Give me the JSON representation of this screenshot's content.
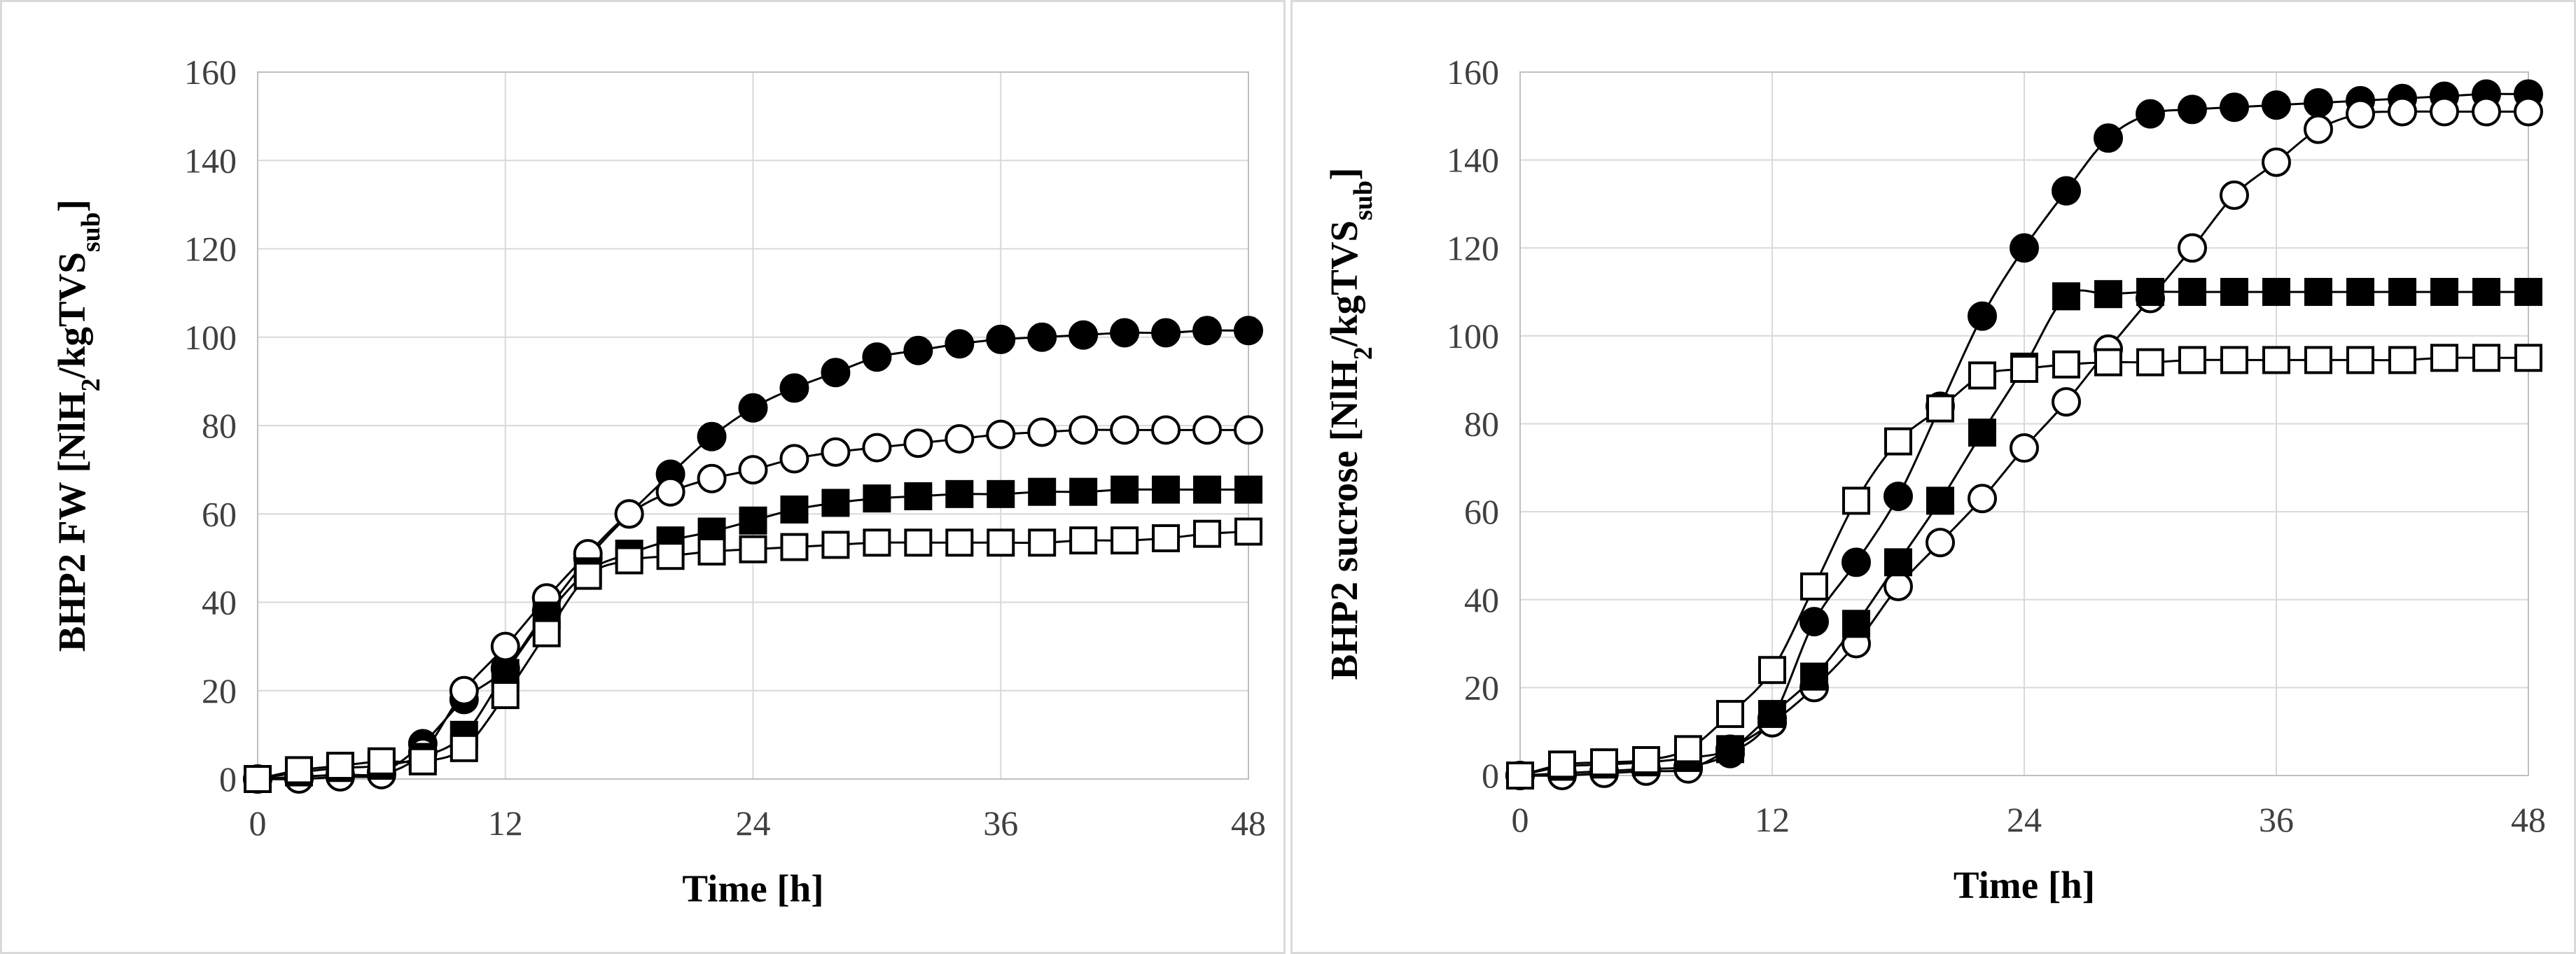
{
  "chart_data": [
    {
      "type": "scatter",
      "title": "",
      "xlabel": "Time [h]",
      "ylabel": {
        "prefix": "BHP2 FW [NlH",
        "sub1": "2",
        "mid": "/kgTVS",
        "sub2": "sub",
        "suffix": "]"
      },
      "xlim": [
        0,
        48
      ],
      "ylim": [
        0,
        160
      ],
      "xticks": [
        "0",
        "12",
        "24",
        "36",
        "48"
      ],
      "yticks": [
        "0",
        "20",
        "40",
        "60",
        "80",
        "100",
        "120",
        "140",
        "160"
      ],
      "grid": true,
      "legend": "none",
      "series": [
        {
          "marker": "filled-circle",
          "x": [
            0,
            2,
            4,
            6,
            8,
            10,
            12,
            14,
            16,
            18,
            20,
            22,
            24,
            26,
            28,
            30,
            32,
            34,
            36,
            38,
            40,
            42,
            44,
            46,
            48
          ],
          "y": [
            0,
            0.5,
            1,
            1.5,
            8,
            18,
            25,
            38,
            50,
            60,
            69,
            77.5,
            84,
            88.5,
            92,
            95.5,
            97,
            98.5,
            99.5,
            100,
            100.5,
            101,
            101,
            101.5,
            101.5
          ]
        },
        {
          "marker": "open-circle",
          "x": [
            0,
            2,
            4,
            6,
            8,
            10,
            12,
            14,
            16,
            18,
            20,
            22,
            24,
            26,
            28,
            30,
            32,
            34,
            36,
            38,
            40,
            42,
            44,
            46,
            48
          ],
          "y": [
            0,
            0,
            0.5,
            1,
            6,
            20,
            30,
            41,
            51,
            60,
            65,
            68,
            70,
            72.5,
            74,
            75,
            76,
            77,
            78,
            78.5,
            79,
            79,
            79,
            79,
            79
          ]
        },
        {
          "marker": "filled-square",
          "x": [
            0,
            2,
            4,
            6,
            8,
            10,
            12,
            14,
            16,
            18,
            20,
            22,
            24,
            26,
            28,
            30,
            32,
            34,
            36,
            38,
            40,
            42,
            44,
            46,
            48
          ],
          "y": [
            0,
            1.5,
            2.5,
            3,
            5,
            10,
            24,
            37,
            47,
            51,
            54,
            56,
            58.5,
            61,
            62.5,
            63.5,
            64,
            64.5,
            64.5,
            65,
            65,
            65.5,
            65.5,
            65.5,
            65.5
          ]
        },
        {
          "marker": "open-square",
          "x": [
            0,
            2,
            4,
            6,
            8,
            10,
            12,
            14,
            16,
            18,
            20,
            22,
            24,
            26,
            28,
            30,
            32,
            34,
            36,
            38,
            40,
            42,
            44,
            46,
            48
          ],
          "y": [
            0,
            2,
            3,
            4,
            4,
            7,
            19,
            33,
            46,
            49.5,
            50.5,
            51.5,
            52,
            52.5,
            53,
            53.5,
            53.5,
            53.5,
            53.5,
            53.5,
            54,
            54,
            54.5,
            55.5,
            56
          ]
        }
      ]
    },
    {
      "type": "scatter",
      "title": "",
      "xlabel": "Time [h]",
      "ylabel": {
        "prefix": "BHP2 sucrose [NlH",
        "sub1": "2",
        "mid": "/kgTVS",
        "sub2": "sub",
        "suffix": "]"
      },
      "xlim": [
        0,
        48
      ],
      "ylim": [
        0,
        160
      ],
      "xticks": [
        "0",
        "12",
        "24",
        "36",
        "48"
      ],
      "yticks": [
        "0",
        "20",
        "40",
        "60",
        "80",
        "100",
        "120",
        "140",
        "160"
      ],
      "grid": true,
      "legend": "none",
      "series": [
        {
          "marker": "filled-circle",
          "x": [
            0,
            2,
            4,
            6,
            8,
            10,
            12,
            14,
            16,
            18,
            20,
            22,
            24,
            26,
            28,
            30,
            32,
            34,
            36,
            38,
            40,
            42,
            44,
            46,
            48
          ],
          "y": [
            0,
            0.5,
            1,
            1.5,
            2,
            5,
            13,
            35,
            48.5,
            63.5,
            84,
            104.5,
            120,
            133,
            145,
            150.5,
            151.5,
            152,
            152.5,
            153,
            153.5,
            154,
            154.5,
            155,
            155
          ]
        },
        {
          "marker": "open-circle",
          "x": [
            0,
            2,
            4,
            6,
            8,
            10,
            12,
            14,
            16,
            18,
            20,
            22,
            24,
            26,
            28,
            30,
            32,
            34,
            36,
            38,
            40,
            42,
            44,
            46,
            48
          ],
          "y": [
            0,
            0,
            0.5,
            1,
            1.5,
            6,
            12,
            20,
            30,
            43,
            53,
            63,
            74.5,
            85,
            97,
            108.5,
            120,
            132,
            139.5,
            147,
            150.5,
            151,
            151,
            151,
            151
          ]
        },
        {
          "marker": "filled-square",
          "x": [
            0,
            2,
            4,
            6,
            8,
            10,
            12,
            14,
            16,
            18,
            20,
            22,
            24,
            26,
            28,
            30,
            32,
            34,
            36,
            38,
            40,
            42,
            44,
            46,
            48
          ],
          "y": [
            0,
            2,
            2.5,
            3,
            4,
            6,
            14,
            22.5,
            34.5,
            48.5,
            62.5,
            78,
            93,
            109,
            109.5,
            110,
            110,
            110,
            110,
            110,
            110,
            110,
            110,
            110,
            110
          ]
        },
        {
          "marker": "open-square",
          "x": [
            0,
            2,
            4,
            6,
            8,
            10,
            12,
            14,
            16,
            18,
            20,
            22,
            24,
            26,
            28,
            30,
            32,
            34,
            36,
            38,
            40,
            42,
            44,
            46,
            48
          ],
          "y": [
            0,
            2.5,
            3,
            3.5,
            6,
            14,
            24,
            43,
            62.5,
            76,
            83.5,
            91,
            92.5,
            93.5,
            94,
            94,
            94.5,
            94.5,
            94.5,
            94.5,
            94.5,
            94.5,
            95,
            95,
            95
          ]
        }
      ]
    }
  ]
}
